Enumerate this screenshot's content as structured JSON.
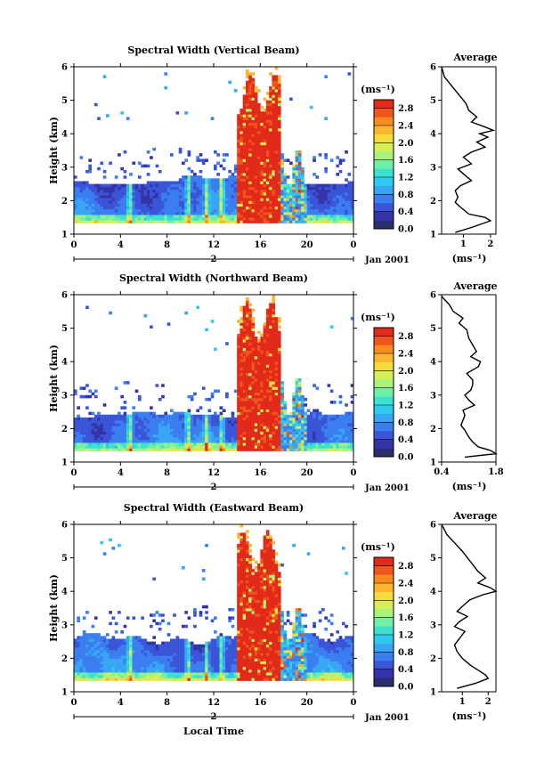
{
  "figure": {
    "bottom_xlabel": "Local Time"
  },
  "colorbar": {
    "unit": "(ms⁻¹)",
    "colors": [
      "#2a2e6e",
      "#3434a8",
      "#3b55d8",
      "#3a7ef0",
      "#38a6f5",
      "#2fc8ee",
      "#3ee0d0",
      "#6ef0a6",
      "#a6f27a",
      "#d8ee56",
      "#f6dc3a",
      "#fbb52e",
      "#f98a22",
      "#f0551c",
      "#e22a1a"
    ],
    "ticks": [
      "0.0",
      "0.4",
      "0.8",
      "1.2",
      "1.6",
      "2.0",
      "2.4",
      "2.8"
    ]
  },
  "chart_data": [
    {
      "type": "heatmap",
      "title": "Spectral Width (Vertical Beam)",
      "xlabel": "",
      "ylabel": "Height (km)",
      "xlim": [
        0,
        24
      ],
      "ylim": [
        1,
        6
      ],
      "x_ticks": [
        "0",
        "4",
        "8",
        "12",
        "16",
        "20",
        "0"
      ],
      "y_ticks": [
        "1",
        "2",
        "3",
        "4",
        "5",
        "6"
      ],
      "day_label": "2",
      "date_label": "Jan 2001",
      "scale": "Spectral width (ms⁻¹)",
      "colorbar_range": [
        0.0,
        3.0
      ],
      "profile": {
        "title": "Average",
        "xlabel": "(ms⁻¹)",
        "x_ticks": [
          "1",
          "2"
        ],
        "x_tick_values": [
          1,
          2
        ],
        "xlim": [
          0.2,
          2.2
        ],
        "points": [
          [
            0.1,
            6.0
          ],
          [
            0.3,
            5.7
          ],
          [
            0.6,
            5.4
          ],
          [
            0.9,
            5.1
          ],
          [
            1.1,
            4.9
          ],
          [
            1.2,
            4.7
          ],
          [
            1.5,
            4.5
          ],
          [
            1.3,
            4.35
          ],
          [
            1.8,
            4.2
          ],
          [
            2.1,
            4.1
          ],
          [
            1.6,
            4.0
          ],
          [
            1.9,
            3.9
          ],
          [
            1.5,
            3.75
          ],
          [
            1.8,
            3.6
          ],
          [
            1.3,
            3.45
          ],
          [
            1.0,
            3.3
          ],
          [
            1.3,
            3.1
          ],
          [
            0.8,
            2.95
          ],
          [
            1.0,
            2.8
          ],
          [
            1.3,
            2.6
          ],
          [
            0.9,
            2.45
          ],
          [
            0.7,
            2.3
          ],
          [
            0.8,
            2.1
          ],
          [
            0.7,
            1.95
          ],
          [
            0.9,
            1.8
          ],
          [
            1.2,
            1.6
          ],
          [
            1.8,
            1.5
          ],
          [
            2.0,
            1.4
          ],
          [
            1.3,
            1.2
          ],
          [
            0.7,
            1.05
          ]
        ]
      }
    },
    {
      "type": "heatmap",
      "title": "Spectral Width (Northward Beam)",
      "xlabel": "",
      "ylabel": "Height (km)",
      "xlim": [
        0,
        24
      ],
      "ylim": [
        1,
        6
      ],
      "x_ticks": [
        "0",
        "4",
        "8",
        "12",
        "16",
        "20",
        "0"
      ],
      "y_ticks": [
        "1",
        "2",
        "3",
        "4",
        "5",
        "6"
      ],
      "day_label": "2",
      "date_label": "Jan 2001",
      "scale": "Spectral width (ms⁻¹)",
      "colorbar_range": [
        0.0,
        3.0
      ],
      "profile": {
        "title": "Average",
        "xlabel": "(ms⁻¹)",
        "x_ticks": [
          "0.4",
          "1.8"
        ],
        "x_tick_values": [
          0.4,
          1.8
        ],
        "xlim": [
          0.4,
          1.8
        ],
        "points": [
          [
            0.4,
            5.95
          ],
          [
            0.6,
            5.7
          ],
          [
            0.7,
            5.5
          ],
          [
            0.95,
            5.3
          ],
          [
            0.85,
            5.15
          ],
          [
            1.05,
            4.95
          ],
          [
            1.1,
            4.7
          ],
          [
            1.2,
            4.5
          ],
          [
            1.3,
            4.3
          ],
          [
            1.15,
            4.15
          ],
          [
            1.4,
            4.0
          ],
          [
            1.35,
            3.85
          ],
          [
            1.05,
            3.65
          ],
          [
            1.2,
            3.45
          ],
          [
            1.2,
            3.3
          ],
          [
            1.15,
            3.15
          ],
          [
            1.0,
            3.0
          ],
          [
            1.1,
            2.85
          ],
          [
            1.25,
            2.7
          ],
          [
            0.95,
            2.55
          ],
          [
            1.0,
            2.4
          ],
          [
            0.95,
            2.25
          ],
          [
            0.9,
            2.1
          ],
          [
            1.0,
            1.95
          ],
          [
            1.1,
            1.75
          ],
          [
            1.2,
            1.6
          ],
          [
            1.35,
            1.45
          ],
          [
            1.65,
            1.35
          ],
          [
            1.8,
            1.25
          ],
          [
            1.0,
            1.15
          ]
        ]
      }
    },
    {
      "type": "heatmap",
      "title": "Spectral Width (Eastward Beam)",
      "xlabel": "Local Time",
      "ylabel": "Height (km)",
      "xlim": [
        0,
        24
      ],
      "ylim": [
        1,
        6
      ],
      "x_ticks": [
        "0",
        "4",
        "8",
        "12",
        "16",
        "20",
        "0"
      ],
      "y_ticks": [
        "1",
        "2",
        "3",
        "4",
        "5",
        "6"
      ],
      "day_label": "2",
      "date_label": "Jan 2001",
      "scale": "Spectral width (ms⁻¹)",
      "colorbar_range": [
        0.0,
        3.0
      ],
      "profile": {
        "title": "Average",
        "xlabel": "(ms⁻¹)",
        "x_ticks": [
          "1",
          "2"
        ],
        "x_tick_values": [
          1,
          2
        ],
        "xlim": [
          0.2,
          2.3
        ],
        "points": [
          [
            0.1,
            6.0
          ],
          [
            0.4,
            5.7
          ],
          [
            0.7,
            5.45
          ],
          [
            1.0,
            5.2
          ],
          [
            1.2,
            5.0
          ],
          [
            1.4,
            4.8
          ],
          [
            1.6,
            4.6
          ],
          [
            1.9,
            4.4
          ],
          [
            1.6,
            4.25
          ],
          [
            2.1,
            4.1
          ],
          [
            2.3,
            4.0
          ],
          [
            1.8,
            3.9
          ],
          [
            1.3,
            3.75
          ],
          [
            1.0,
            3.55
          ],
          [
            0.8,
            3.4
          ],
          [
            1.2,
            3.25
          ],
          [
            0.9,
            3.1
          ],
          [
            0.7,
            2.95
          ],
          [
            1.1,
            2.8
          ],
          [
            0.9,
            2.6
          ],
          [
            0.7,
            2.4
          ],
          [
            0.8,
            2.2
          ],
          [
            1.0,
            2.0
          ],
          [
            1.3,
            1.8
          ],
          [
            1.6,
            1.65
          ],
          [
            1.9,
            1.5
          ],
          [
            2.0,
            1.4
          ],
          [
            1.5,
            1.25
          ],
          [
            0.8,
            1.1
          ]
        ]
      }
    }
  ]
}
